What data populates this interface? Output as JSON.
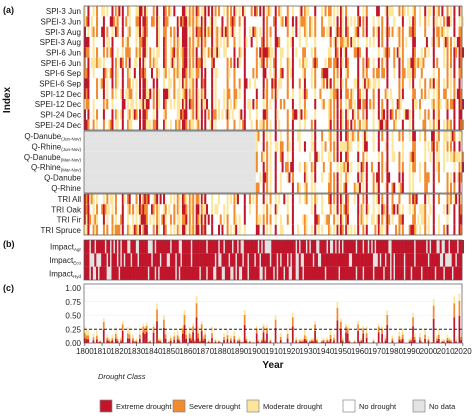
{
  "chart_data": {
    "type": "heatmap",
    "panels": [
      {
        "label": "(a)",
        "rows": [
          "SPI-3 Jun",
          "SPEI-3 Jun",
          "SPI-3 Aug",
          "SPEI-3 Aug",
          "SPI-6 Jun",
          "SPEI-6 Jun",
          "SPI-6 Sep",
          "SPEI-6 Sep",
          "SPI-12 Dec",
          "SPEI-12 Dec",
          "SPI-24 Dec",
          "SPEI-24 Dec"
        ]
      },
      {
        "label": "",
        "rows": [
          {
            "base": "Q-Danube",
            "sub": "(Jun-Nov)"
          },
          {
            "base": "Q-Rhine",
            "sub": "(Jun-Nov)"
          },
          {
            "base": "Q-Danube",
            "sub": "(Mar-Nov)"
          },
          {
            "base": "Q-Rhine",
            "sub": "(Mar-Nov)"
          },
          {
            "base": "Q-Danube",
            "sub": ""
          },
          {
            "base": "Q-Rhine",
            "sub": ""
          }
        ],
        "no_data_until": [
          1900,
          1900,
          1900,
          1900,
          1900,
          1900
        ]
      },
      {
        "label": "",
        "rows": [
          "TRI All",
          "TRI Oak",
          "TRI Fir",
          "TRI Spruce"
        ]
      },
      {
        "label": "(b)",
        "rows": [
          {
            "base": "Impact",
            "sub": "Agr"
          },
          {
            "base": "Impact",
            "sub": "Eco"
          },
          {
            "base": "Impact",
            "sub": "Hyd"
          }
        ]
      },
      {
        "label": "(c)",
        "type": "bar",
        "yticks": [
          "0.00",
          "0.25",
          "0.50",
          "0.75",
          "1.00"
        ],
        "ylim": [
          0,
          1
        ],
        "threshold": 0.25
      }
    ],
    "x_range": [
      1800,
      2020
    ],
    "xticks": [
      1800,
      1810,
      1820,
      1830,
      1840,
      1850,
      1860,
      1870,
      1880,
      1890,
      1900,
      1910,
      1920,
      1930,
      1940,
      1950,
      1960,
      1970,
      1980,
      1990,
      2000,
      2010,
      2020
    ],
    "xlabel": "Year",
    "ylabel": "Index",
    "legend": {
      "title": "Drought Class",
      "entries": [
        {
          "label": "Extreme drought",
          "color": "#c0152a"
        },
        {
          "label": "Severe drought",
          "color": "#f28a30"
        },
        {
          "label": "Moderate drought",
          "color": "#fde59a"
        },
        {
          "label": "No drought",
          "color": "#ffffff"
        },
        {
          "label": "No data",
          "color": "#e3e3e3"
        }
      ]
    },
    "years_extreme_common": [
      1800,
      1802,
      1811,
      1816,
      1822,
      1832,
      1834,
      1835,
      1842,
      1846,
      1857,
      1858,
      1859,
      1865,
      1868,
      1870,
      1874,
      1893,
      1904,
      1911,
      1921,
      1934,
      1947,
      1949,
      1952,
      1959,
      1964,
      1971,
      1976,
      1991,
      2003,
      2015,
      2018
    ],
    "years_severe_common": [
      1801,
      1807,
      1818,
      1825,
      1826,
      1836,
      1840,
      1847,
      1852,
      1854,
      1861,
      1863,
      1866,
      1883,
      1887,
      1900,
      1906,
      1918,
      1928,
      1943,
      1945,
      1953,
      1962,
      1973,
      1983,
      1985,
      1992,
      1998,
      2006,
      2011,
      2019
    ],
    "years_moderate_common": [
      1805,
      1813,
      1819,
      1828,
      1830,
      1843,
      1850,
      1855,
      1862,
      1869,
      1876,
      1881,
      1885,
      1890,
      1896,
      1908,
      1914,
      1925,
      1929,
      1932,
      1938,
      1942,
      1950,
      1957,
      1968,
      1975,
      1979,
      1989,
      1995,
      2000,
      2005,
      2009,
      2013
    ],
    "drought_fraction_peaks": [
      {
        "year": 1800,
        "value": 0.3
      },
      {
        "year": 1811,
        "value": 0.45
      },
      {
        "year": 1816,
        "value": 0.15
      },
      {
        "year": 1822,
        "value": 0.4
      },
      {
        "year": 1834,
        "value": 0.35
      },
      {
        "year": 1842,
        "value": 0.72
      },
      {
        "year": 1846,
        "value": 0.5
      },
      {
        "year": 1858,
        "value": 0.6
      },
      {
        "year": 1865,
        "value": 0.85
      },
      {
        "year": 1868,
        "value": 0.4
      },
      {
        "year": 1874,
        "value": 0.3
      },
      {
        "year": 1893,
        "value": 0.6
      },
      {
        "year": 1904,
        "value": 0.35
      },
      {
        "year": 1911,
        "value": 0.5
      },
      {
        "year": 1921,
        "value": 0.55
      },
      {
        "year": 1934,
        "value": 0.4
      },
      {
        "year": 1947,
        "value": 0.75
      },
      {
        "year": 1949,
        "value": 0.45
      },
      {
        "year": 1952,
        "value": 0.35
      },
      {
        "year": 1959,
        "value": 0.4
      },
      {
        "year": 1964,
        "value": 0.3
      },
      {
        "year": 1971,
        "value": 0.35
      },
      {
        "year": 1976,
        "value": 0.6
      },
      {
        "year": 1991,
        "value": 0.55
      },
      {
        "year": 2003,
        "value": 0.8
      },
      {
        "year": 2015,
        "value": 0.85
      },
      {
        "year": 2018,
        "value": 0.9
      }
    ]
  }
}
